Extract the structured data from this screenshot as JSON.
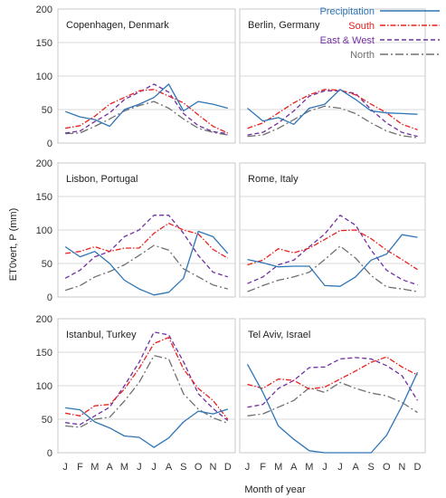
{
  "figure": {
    "ylabel": "ET0vert, P (mm)",
    "xlabel": "Month of year",
    "legend": {
      "items": [
        {
          "label": "Precipitation",
          "color": "#2E75B6",
          "dash": "solid"
        },
        {
          "label": "South",
          "color": "#E8201E",
          "dash": "dashdot"
        },
        {
          "label": "East & West",
          "color": "#7030A0",
          "dash": "dashed"
        },
        {
          "label": "North",
          "color": "#707070",
          "dash": "longdashdot"
        }
      ]
    }
  },
  "chart_data": [
    {
      "type": "line",
      "title": "Copenhagen, Denmark",
      "categories": [
        "J",
        "F",
        "M",
        "A",
        "M",
        "J",
        "J",
        "A",
        "S",
        "O",
        "N",
        "D"
      ],
      "ylim": [
        0,
        200
      ],
      "yticks": [
        0,
        50,
        100,
        150,
        200
      ],
      "series": [
        {
          "name": "Precipitation",
          "values": [
            47,
            39,
            35,
            25,
            50,
            58,
            68,
            88,
            48,
            62,
            58,
            52
          ]
        },
        {
          "name": "South",
          "values": [
            22,
            26,
            40,
            58,
            68,
            78,
            80,
            70,
            60,
            42,
            25,
            15
          ]
        },
        {
          "name": "East & West",
          "values": [
            15,
            18,
            32,
            45,
            65,
            76,
            88,
            76,
            44,
            26,
            17,
            14
          ]
        },
        {
          "name": "North",
          "values": [
            14,
            15,
            25,
            36,
            48,
            56,
            62,
            52,
            36,
            22,
            16,
            12
          ]
        }
      ]
    },
    {
      "type": "line",
      "title": "Berlin, Germany",
      "categories": [
        "J",
        "F",
        "M",
        "A",
        "M",
        "J",
        "J",
        "A",
        "S",
        "O",
        "N",
        "D"
      ],
      "ylim": [
        0,
        200
      ],
      "yticks": [
        0,
        50,
        100,
        150,
        200
      ],
      "series": [
        {
          "name": "Precipitation",
          "values": [
            52,
            33,
            38,
            28,
            52,
            58,
            80,
            65,
            48,
            45,
            44,
            43
          ]
        },
        {
          "name": "South",
          "values": [
            22,
            30,
            45,
            60,
            72,
            80,
            79,
            72,
            58,
            45,
            28,
            20
          ]
        },
        {
          "name": "East & West",
          "values": [
            12,
            16,
            30,
            48,
            70,
            78,
            78,
            74,
            50,
            30,
            16,
            10
          ]
        },
        {
          "name": "North",
          "values": [
            10,
            12,
            22,
            35,
            48,
            55,
            52,
            44,
            30,
            18,
            11,
            8
          ]
        }
      ]
    },
    {
      "type": "line",
      "title": "Lisbon, Portugal",
      "categories": [
        "J",
        "F",
        "M",
        "A",
        "M",
        "J",
        "J",
        "A",
        "S",
        "O",
        "N",
        "D"
      ],
      "ylim": [
        0,
        200
      ],
      "yticks": [
        0,
        50,
        100,
        150,
        200
      ],
      "series": [
        {
          "name": "Precipitation",
          "values": [
            75,
            60,
            68,
            50,
            25,
            12,
            3,
            7,
            28,
            98,
            90,
            65
          ]
        },
        {
          "name": "South",
          "values": [
            65,
            68,
            75,
            68,
            73,
            73,
            95,
            110,
            100,
            94,
            71,
            58
          ]
        },
        {
          "name": "East & West",
          "values": [
            28,
            40,
            60,
            68,
            90,
            100,
            122,
            122,
            95,
            62,
            37,
            30
          ]
        },
        {
          "name": "North",
          "values": [
            10,
            17,
            30,
            38,
            48,
            62,
            77,
            70,
            42,
            30,
            18,
            12
          ]
        }
      ]
    },
    {
      "type": "line",
      "title": "Rome, Italy",
      "categories": [
        "J",
        "F",
        "M",
        "A",
        "M",
        "J",
        "J",
        "A",
        "S",
        "O",
        "N",
        "D"
      ],
      "ylim": [
        0,
        200
      ],
      "yticks": [
        0,
        50,
        100,
        150,
        200
      ],
      "series": [
        {
          "name": "Precipitation",
          "values": [
            56,
            51,
            45,
            46,
            46,
            17,
            16,
            30,
            55,
            64,
            93,
            89
          ]
        },
        {
          "name": "South",
          "values": [
            48,
            55,
            72,
            66,
            73,
            86,
            99,
            100,
            87,
            70,
            56,
            41
          ]
        },
        {
          "name": "East & West",
          "values": [
            20,
            30,
            48,
            55,
            75,
            94,
            122,
            107,
            70,
            40,
            26,
            18
          ]
        },
        {
          "name": "North",
          "values": [
            8,
            17,
            25,
            30,
            37,
            56,
            76,
            58,
            32,
            15,
            12,
            8
          ]
        }
      ]
    },
    {
      "type": "line",
      "title": "Istanbul, Turkey",
      "categories": [
        "J",
        "F",
        "M",
        "A",
        "M",
        "J",
        "J",
        "A",
        "S",
        "O",
        "N",
        "D"
      ],
      "ylim": [
        0,
        200
      ],
      "yticks": [
        0,
        50,
        100,
        150,
        200
      ],
      "series": [
        {
          "name": "Precipitation",
          "values": [
            67,
            64,
            46,
            37,
            25,
            23,
            8,
            22,
            46,
            62,
            58,
            65
          ]
        },
        {
          "name": "South",
          "values": [
            59,
            55,
            70,
            72,
            95,
            126,
            163,
            172,
            125,
            96,
            78,
            50
          ]
        },
        {
          "name": "East & West",
          "values": [
            45,
            42,
            55,
            68,
            100,
            135,
            180,
            176,
            136,
            88,
            66,
            48
          ]
        },
        {
          "name": "North",
          "values": [
            40,
            38,
            50,
            53,
            77,
            105,
            145,
            140,
            88,
            65,
            52,
            44
          ]
        }
      ]
    },
    {
      "type": "line",
      "title": "Tel Aviv, Israel",
      "categories": [
        "J",
        "F",
        "M",
        "A",
        "M",
        "J",
        "J",
        "A",
        "S",
        "O",
        "N",
        "D"
      ],
      "ylim": [
        0,
        200
      ],
      "yticks": [
        0,
        50,
        100,
        150,
        200
      ],
      "series": [
        {
          "name": "Precipitation",
          "values": [
            132,
            90,
            40,
            20,
            3,
            0,
            0,
            0,
            0,
            26,
            70,
            120
          ]
        },
        {
          "name": "South",
          "values": [
            102,
            96,
            110,
            108,
            95,
            98,
            110,
            122,
            135,
            143,
            128,
            116
          ]
        },
        {
          "name": "East & West",
          "values": [
            68,
            72,
            96,
            108,
            127,
            128,
            140,
            142,
            140,
            130,
            115,
            78
          ]
        },
        {
          "name": "North",
          "values": [
            55,
            58,
            68,
            78,
            97,
            90,
            105,
            96,
            89,
            85,
            75,
            60
          ]
        }
      ]
    }
  ]
}
